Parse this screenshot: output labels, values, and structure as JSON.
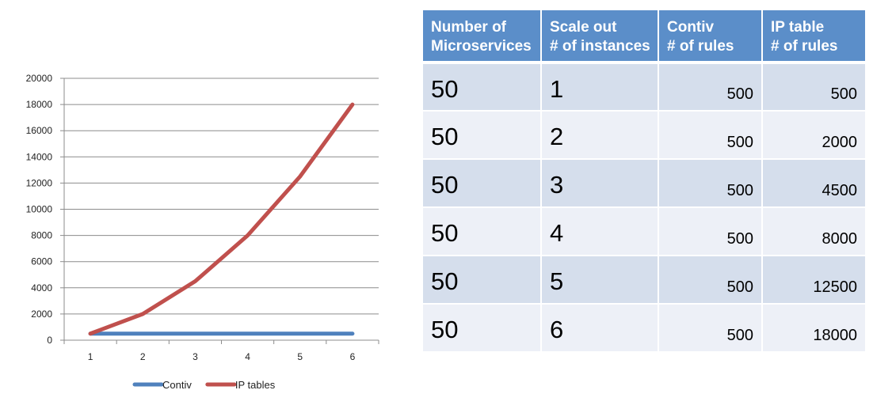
{
  "chart_data": {
    "type": "line",
    "x": [
      1,
      2,
      3,
      4,
      5,
      6
    ],
    "ylim": [
      0,
      20000
    ],
    "yticks": [
      0,
      2000,
      4000,
      6000,
      8000,
      10000,
      12000,
      14000,
      16000,
      18000,
      20000
    ],
    "grid": true,
    "legend_position": "bottom",
    "series": [
      {
        "name": "Contiv",
        "color": "#4f81bd",
        "values": [
          500,
          500,
          500,
          500,
          500,
          500
        ]
      },
      {
        "name": "IP tables",
        "color": "#c0504d",
        "values": [
          500,
          2000,
          4500,
          8000,
          12500,
          18000
        ]
      }
    ]
  },
  "table": {
    "header_color": "#5b8ec9",
    "row_colors": [
      "#d5deec",
      "#edf0f7"
    ],
    "columns": [
      [
        "Number of",
        "Microservices"
      ],
      [
        "Scale out",
        "# of instances"
      ],
      [
        "Contiv",
        "# of rules"
      ],
      [
        "IP table",
        "# of rules"
      ]
    ],
    "rows": [
      [
        "50",
        "1",
        "500",
        "500"
      ],
      [
        "50",
        "2",
        "500",
        "2000"
      ],
      [
        "50",
        "3",
        "500",
        "4500"
      ],
      [
        "50",
        "4",
        "500",
        "8000"
      ],
      [
        "50",
        "5",
        "500",
        "12500"
      ],
      [
        "50",
        "6",
        "500",
        "18000"
      ]
    ]
  }
}
